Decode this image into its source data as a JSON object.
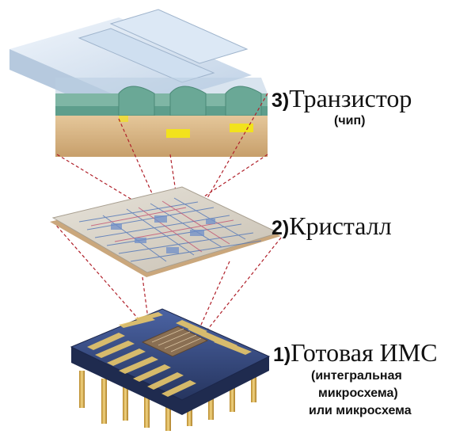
{
  "labels": {
    "transistor": {
      "number": "3)",
      "title": "Транзистор",
      "sub": "(чип)"
    },
    "crystal": {
      "number": "2)",
      "title": "Кристалл"
    },
    "ic": {
      "number": "1)",
      "title": "Готовая ИМС",
      "sub_lines": [
        "(интегральная",
        "микросхема)",
        "или микросхема"
      ]
    }
  },
  "colors": {
    "glass": "#c9d8ea",
    "oxide": "#7fb6a5",
    "substrate": "#d8b98a",
    "gate": "#f2e21c",
    "chip_body": "#3a4f86",
    "pins": "#e8c76a",
    "guide_lines": "#b0202a"
  }
}
